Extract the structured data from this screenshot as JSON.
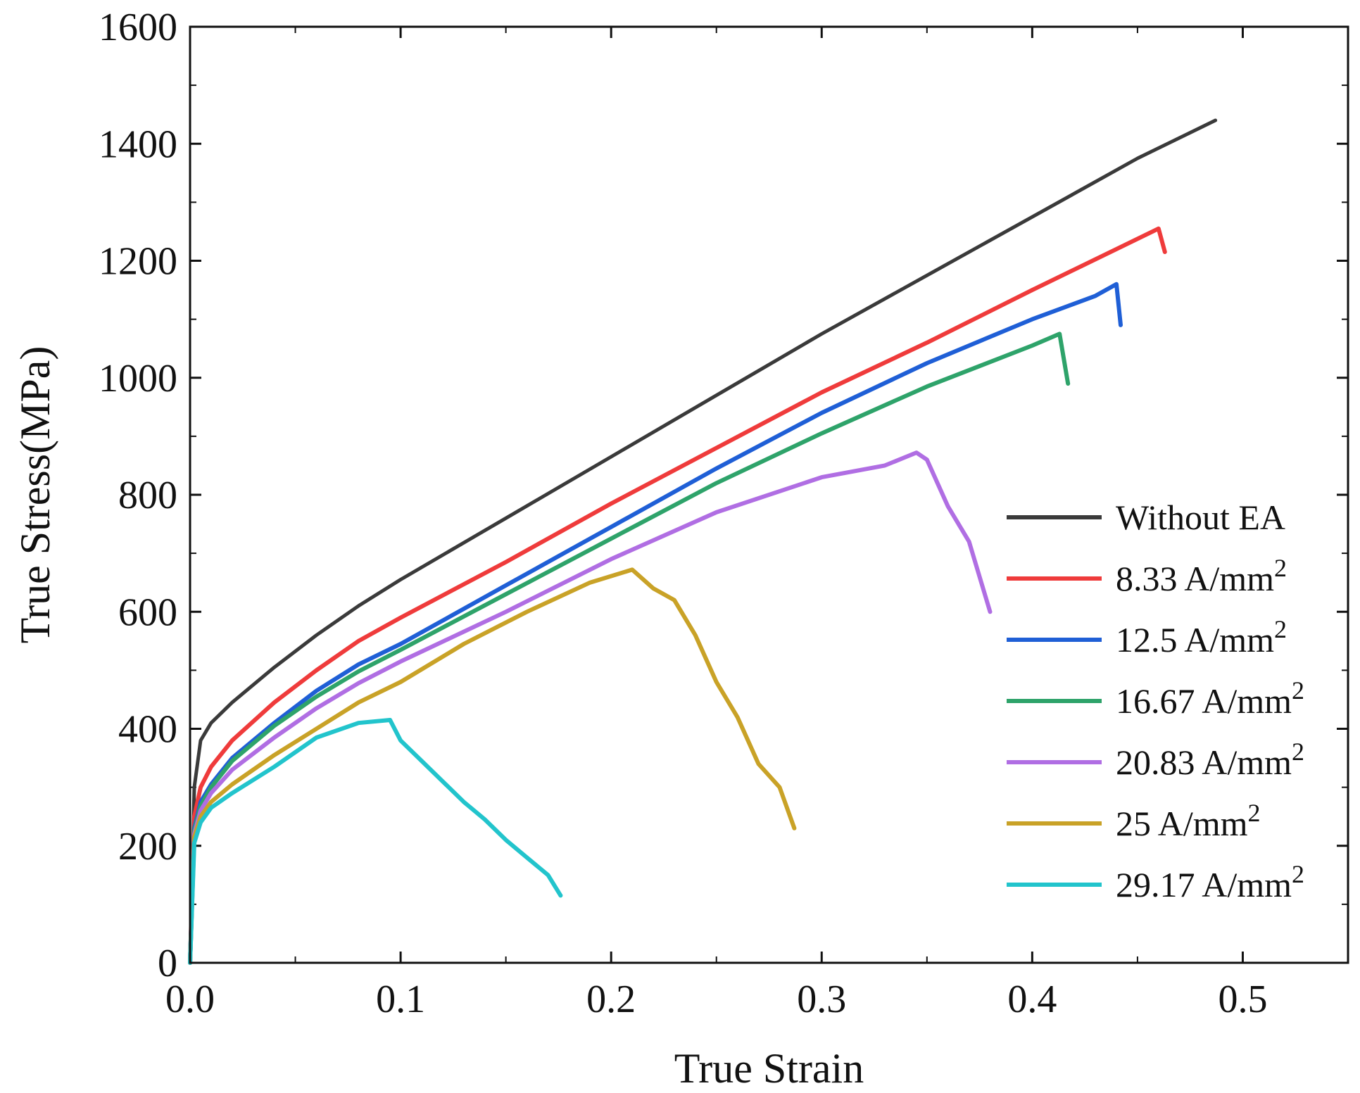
{
  "chart_data": {
    "type": "line",
    "title": "",
    "xlabel": "True Strain",
    "ylabel": "True Stress(MPa)",
    "xlim": [
      0,
      0.55
    ],
    "ylim": [
      0,
      1600
    ],
    "x_ticks": [
      0.0,
      0.1,
      0.2,
      0.3,
      0.4,
      0.5
    ],
    "x_tick_labels": [
      "0.0",
      "0.1",
      "0.2",
      "0.3",
      "0.4",
      "0.5"
    ],
    "y_ticks": [
      0,
      200,
      400,
      600,
      800,
      1000,
      1200,
      1400,
      1600
    ],
    "y_tick_labels": [
      "0",
      "200",
      "400",
      "600",
      "800",
      "1000",
      "1200",
      "1400",
      "1600"
    ],
    "grid": false,
    "legend_position": "right",
    "series": [
      {
        "name": "Without EA",
        "label_main": "Without EA",
        "label_sup": "",
        "color": "#3a3a3a",
        "x": [
          0,
          0.002,
          0.005,
          0.01,
          0.02,
          0.04,
          0.06,
          0.08,
          0.1,
          0.15,
          0.2,
          0.25,
          0.3,
          0.35,
          0.4,
          0.45,
          0.487
        ],
        "y": [
          0,
          300,
          380,
          410,
          445,
          505,
          560,
          610,
          655,
          760,
          865,
          970,
          1075,
          1175,
          1275,
          1375,
          1440
        ]
      },
      {
        "name": "8.33 A/mm2",
        "label_main": "8.33 A/mm",
        "label_sup": "2",
        "color": "#ef3b3b",
        "x": [
          0,
          0.002,
          0.005,
          0.01,
          0.02,
          0.04,
          0.06,
          0.08,
          0.1,
          0.15,
          0.2,
          0.25,
          0.3,
          0.35,
          0.4,
          0.44,
          0.46,
          0.463
        ],
        "y": [
          0,
          250,
          300,
          335,
          380,
          445,
          500,
          550,
          590,
          685,
          785,
          880,
          975,
          1060,
          1150,
          1220,
          1255,
          1215
        ]
      },
      {
        "name": "12.5 A/mm2",
        "label_main": "12.5 A/mm",
        "label_sup": "2",
        "color": "#1f5fd6",
        "x": [
          0,
          0.002,
          0.005,
          0.01,
          0.02,
          0.04,
          0.06,
          0.08,
          0.1,
          0.15,
          0.2,
          0.25,
          0.3,
          0.35,
          0.4,
          0.43,
          0.44,
          0.442
        ],
        "y": [
          0,
          230,
          275,
          305,
          350,
          410,
          465,
          510,
          545,
          645,
          745,
          845,
          940,
          1025,
          1100,
          1140,
          1160,
          1090
        ]
      },
      {
        "name": "16.67 A/mm2",
        "label_main": "16.67 A/mm",
        "label_sup": "2",
        "color": "#2ea36a",
        "x": [
          0,
          0.002,
          0.005,
          0.01,
          0.02,
          0.04,
          0.06,
          0.08,
          0.1,
          0.15,
          0.2,
          0.25,
          0.3,
          0.35,
          0.4,
          0.413,
          0.417
        ],
        "y": [
          0,
          225,
          268,
          300,
          345,
          405,
          455,
          498,
          535,
          630,
          725,
          820,
          905,
          985,
          1055,
          1075,
          990
        ]
      },
      {
        "name": "20.83 A/mm2",
        "label_main": "20.83 A/mm",
        "label_sup": "2",
        "color": "#b06ee3",
        "x": [
          0,
          0.002,
          0.005,
          0.01,
          0.02,
          0.04,
          0.06,
          0.08,
          0.1,
          0.15,
          0.2,
          0.25,
          0.3,
          0.33,
          0.345,
          0.35,
          0.36,
          0.37,
          0.38
        ],
        "y": [
          0,
          220,
          260,
          290,
          330,
          385,
          435,
          478,
          515,
          600,
          690,
          770,
          830,
          850,
          872,
          860,
          780,
          720,
          600
        ]
      },
      {
        "name": "25 A/mm2",
        "label_main": "25 A/mm",
        "label_sup": "2",
        "color": "#c9a227",
        "x": [
          0,
          0.002,
          0.005,
          0.01,
          0.02,
          0.04,
          0.06,
          0.08,
          0.1,
          0.13,
          0.16,
          0.19,
          0.21,
          0.22,
          0.23,
          0.24,
          0.25,
          0.26,
          0.27,
          0.28,
          0.287
        ],
        "y": [
          0,
          215,
          250,
          275,
          305,
          355,
          400,
          445,
          480,
          545,
          600,
          650,
          672,
          640,
          620,
          560,
          480,
          420,
          340,
          300,
          230
        ]
      },
      {
        "name": "29.17 A/mm2",
        "label_main": "29.17 A/mm",
        "label_sup": "2",
        "color": "#22c4cc",
        "x": [
          0,
          0.002,
          0.005,
          0.01,
          0.02,
          0.04,
          0.06,
          0.08,
          0.095,
          0.1,
          0.11,
          0.12,
          0.13,
          0.14,
          0.15,
          0.16,
          0.17,
          0.176
        ],
        "y": [
          0,
          205,
          240,
          265,
          290,
          335,
          385,
          410,
          415,
          380,
          345,
          310,
          275,
          245,
          210,
          180,
          150,
          115
        ]
      }
    ]
  }
}
